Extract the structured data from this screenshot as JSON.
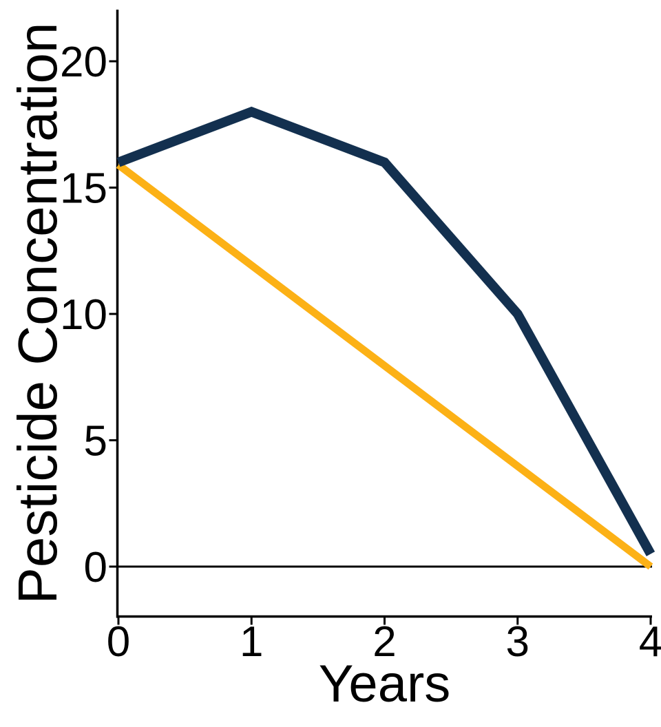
{
  "figure": {
    "background": "#ffffff",
    "axis_color": "#000000",
    "text_color": "#000000"
  },
  "chart_data": {
    "type": "line",
    "title": "",
    "xlabel": "Years",
    "ylabel": "Pesticide Concentration",
    "x_ticks": [
      0,
      1,
      2,
      3,
      4
    ],
    "y_ticks": [
      0,
      5,
      10,
      15,
      20
    ],
    "xlim": [
      0,
      4
    ],
    "ylim": [
      -2,
      22
    ],
    "grid": false,
    "legend": false,
    "baseline_y": 0,
    "series": [
      {
        "name": "linear-decline-line",
        "color": "#FCB116",
        "stroke_width": 11,
        "x": [
          0,
          4
        ],
        "y": [
          15.9,
          0
        ]
      },
      {
        "name": "observed-concentration-line",
        "color": "#13304F",
        "stroke_width": 14,
        "x": [
          0,
          1,
          2,
          3,
          4
        ],
        "y": [
          16,
          18,
          16,
          10,
          0.5
        ]
      }
    ]
  }
}
